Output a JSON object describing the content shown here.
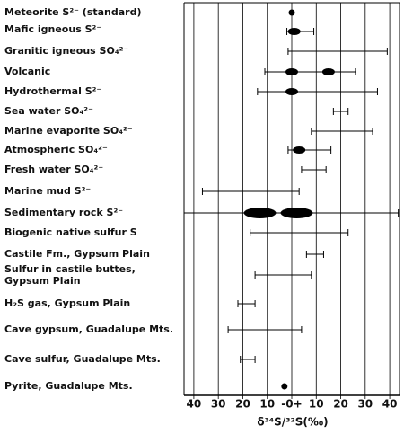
{
  "chart_data": {
    "type": "range",
    "xlabel": "δ³⁴S/³²S(‰)",
    "categories": [
      "Meteorite S²⁻ (standard)",
      "Mafic igneous S²⁻",
      "Granitic igneous SO₄²⁻",
      "Volcanic",
      "Hydrothermal S²⁻",
      "Sea water SO₄²⁻",
      "Marine evaporite SO₄²⁻",
      "Atmospheric SO₄²⁻",
      "Fresh water SO₄²⁻",
      "Marine mud S²⁻",
      "Sedimentary rock S²⁻",
      "Biogenic native sulfur S",
      "Castile Fm., Gypsum Plain",
      "Sulfur in castile buttes,\nGypsum Plain",
      "H₂S gas, Gypsum Plain",
      "Cave gypsum, Guadalupe Mts.",
      "Cave sulfur, Guadalupe Mts.",
      "Pyrite, Guadalupe Mts."
    ],
    "low": [
      null,
      -2,
      -1.5,
      -11,
      -14,
      17,
      8,
      -1.5,
      4,
      -36.5,
      -44,
      -17,
      6,
      -15,
      -22,
      -26,
      -21,
      null
    ],
    "high": [
      null,
      9,
      39,
      26,
      35,
      23,
      33,
      16,
      14,
      3,
      43.5,
      23,
      13,
      8,
      -15,
      4,
      -15,
      null
    ],
    "peaks": [
      [],
      [
        1
      ],
      [],
      [
        0,
        15
      ],
      [
        0
      ],
      [],
      [],
      [
        3
      ],
      [],
      [],
      [
        -13,
        2
      ],
      [],
      [],
      [],
      [],
      [],
      [],
      []
    ],
    "points": [
      0,
      null,
      null,
      null,
      null,
      null,
      null,
      null,
      null,
      null,
      null,
      null,
      null,
      null,
      null,
      null,
      null,
      -3
    ],
    "color": "#000000",
    "xlim": [
      -44,
      44
    ],
    "xticks": [
      {
        "value": -40,
        "label": "40"
      },
      {
        "value": -30,
        "label": "30"
      },
      {
        "value": -20,
        "label": "20"
      },
      {
        "value": -10,
        "label": "10"
      },
      {
        "value": 0,
        "label": "-0+"
      },
      10,
      20,
      30,
      40
    ],
    "grid": true
  }
}
